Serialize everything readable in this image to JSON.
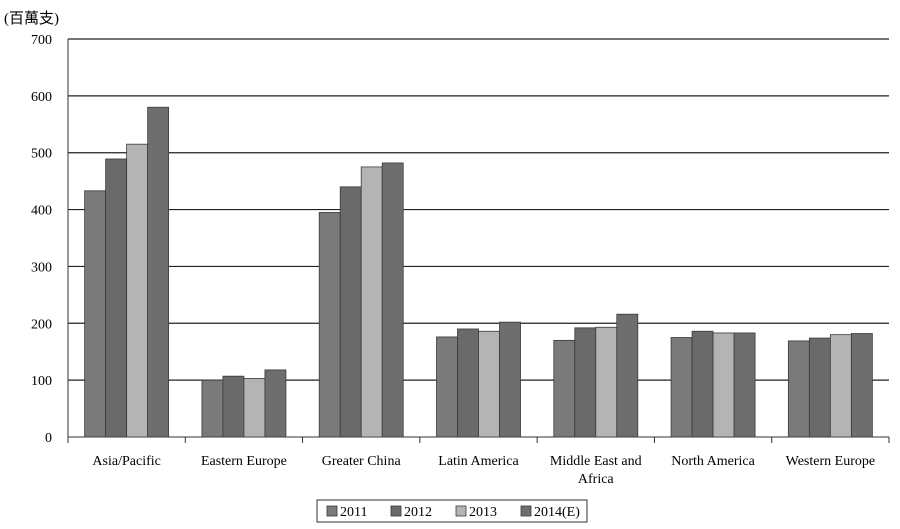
{
  "chart_data": {
    "type": "bar",
    "unit_label": "(百萬支)",
    "categories": [
      [
        "Asia/Pacific"
      ],
      [
        "Eastern Europe"
      ],
      [
        "Greater China"
      ],
      [
        "Latin America"
      ],
      [
        "Middle East and",
        "Africa"
      ],
      [
        "North America"
      ],
      [
        "Western Europe"
      ]
    ],
    "series": [
      {
        "name": "2011",
        "color": "#7a7a7a",
        "values": [
          433,
          100,
          395,
          176,
          170,
          175,
          169
        ]
      },
      {
        "name": "2012",
        "color": "#6a6a6a",
        "values": [
          489,
          107,
          440,
          190,
          192,
          186,
          174
        ]
      },
      {
        "name": "2013",
        "color": "#b4b4b4",
        "values": [
          515,
          103,
          475,
          186,
          193,
          183,
          180
        ]
      },
      {
        "name": "2014(E)",
        "color": "#6e6e6e",
        "values": [
          580,
          118,
          482,
          202,
          216,
          183,
          182
        ]
      }
    ],
    "y_ticks": [
      0,
      100,
      200,
      300,
      400,
      500,
      600,
      700
    ],
    "ylim": [
      0,
      700
    ],
    "grid": true,
    "legend": "bottom"
  }
}
